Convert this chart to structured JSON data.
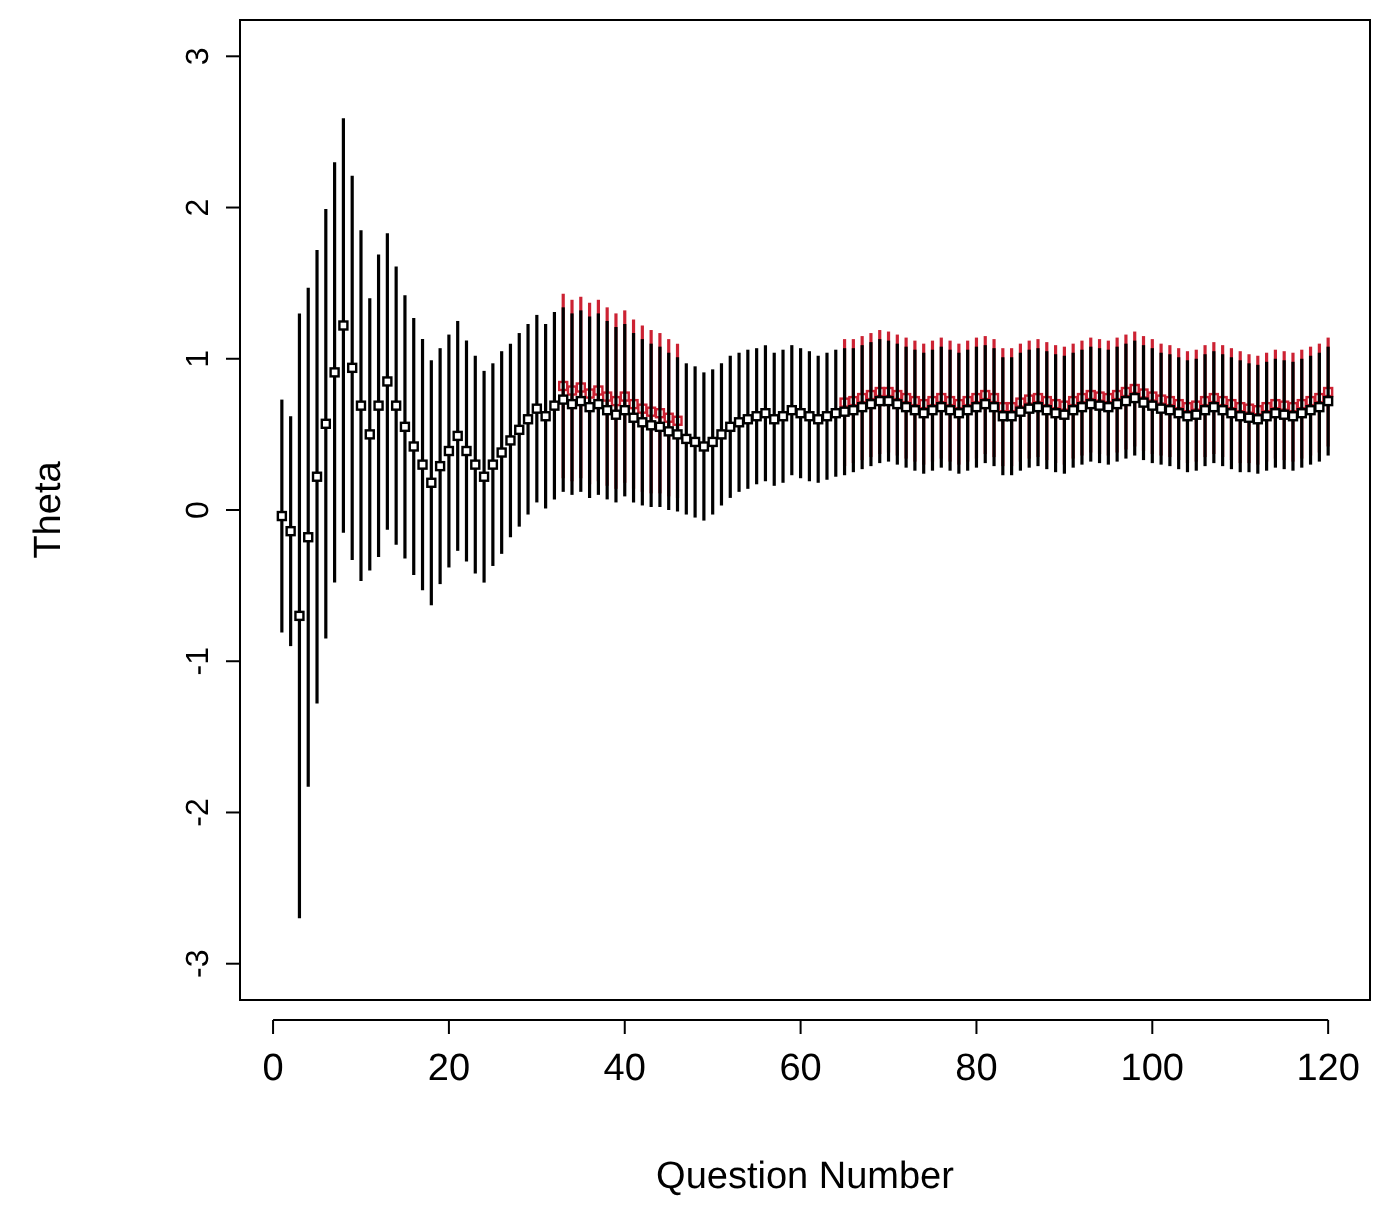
{
  "chart_data": {
    "type": "scatter",
    "xlabel": "Question Number",
    "ylabel": "Theta",
    "marker": "square",
    "grid": false,
    "xlim": [
      -3.76,
      124.76
    ],
    "xticks": [
      0,
      20,
      40,
      60,
      80,
      100,
      120
    ],
    "ylim": [
      -3.24,
      3.24
    ],
    "yticks": [
      -3,
      -2,
      -1,
      0,
      1,
      2,
      3
    ],
    "x": [
      1,
      2,
      3,
      4,
      5,
      6,
      7,
      8,
      9,
      10,
      11,
      12,
      13,
      14,
      15,
      16,
      17,
      18,
      19,
      20,
      21,
      22,
      23,
      24,
      25,
      26,
      27,
      28,
      29,
      30,
      31,
      32,
      33,
      34,
      35,
      36,
      37,
      38,
      39,
      40,
      41,
      42,
      43,
      44,
      45,
      46,
      47,
      48,
      49,
      50,
      51,
      52,
      53,
      54,
      55,
      56,
      57,
      58,
      59,
      60,
      61,
      62,
      63,
      64,
      65,
      66,
      67,
      68,
      69,
      70,
      71,
      72,
      73,
      74,
      75,
      76,
      77,
      78,
      79,
      80,
      81,
      82,
      83,
      84,
      85,
      86,
      87,
      88,
      89,
      90,
      91,
      92,
      93,
      94,
      95,
      96,
      97,
      98,
      99,
      100,
      101,
      102,
      103,
      104,
      105,
      106,
      107,
      108,
      109,
      110,
      111,
      112,
      113,
      114,
      115,
      116,
      117,
      118,
      119,
      120
    ],
    "series": [
      {
        "color": "#cc2233",
        "values": [
          null,
          null,
          null,
          null,
          null,
          null,
          null,
          null,
          null,
          null,
          null,
          null,
          null,
          null,
          null,
          null,
          null,
          null,
          null,
          null,
          null,
          null,
          null,
          null,
          null,
          null,
          null,
          null,
          null,
          null,
          null,
          null,
          0.82,
          0.79,
          0.81,
          0.77,
          0.79,
          0.75,
          0.72,
          0.75,
          0.7,
          0.67,
          0.65,
          0.64,
          0.61,
          0.59,
          null,
          null,
          null,
          null,
          null,
          null,
          null,
          null,
          null,
          null,
          null,
          null,
          null,
          null,
          null,
          null,
          null,
          null,
          0.71,
          0.72,
          0.74,
          0.76,
          0.78,
          0.78,
          0.76,
          0.74,
          0.72,
          0.7,
          0.72,
          0.74,
          0.72,
          0.7,
          0.72,
          0.74,
          0.76,
          0.74,
          0.68,
          0.68,
          0.71,
          0.73,
          0.74,
          0.72,
          0.7,
          0.69,
          0.72,
          0.74,
          0.76,
          0.75,
          0.74,
          0.76,
          0.78,
          0.8,
          0.77,
          0.75,
          0.73,
          0.72,
          0.7,
          0.68,
          0.69,
          0.72,
          0.74,
          0.72,
          0.7,
          0.68,
          0.67,
          0.66,
          0.68,
          0.7,
          0.69,
          0.68,
          0.7,
          0.72,
          0.74,
          0.78
        ],
        "errors": [
          null,
          null,
          null,
          null,
          null,
          null,
          null,
          null,
          null,
          null,
          null,
          null,
          null,
          null,
          null,
          null,
          null,
          null,
          null,
          null,
          null,
          null,
          null,
          null,
          null,
          null,
          null,
          null,
          null,
          null,
          null,
          null,
          0.61,
          0.6,
          0.6,
          0.6,
          0.6,
          0.59,
          0.58,
          0.57,
          0.56,
          0.55,
          0.54,
          0.53,
          0.52,
          0.51,
          null,
          null,
          null,
          null,
          null,
          null,
          null,
          null,
          null,
          null,
          null,
          null,
          null,
          null,
          null,
          null,
          null,
          null,
          0.42,
          0.41,
          0.41,
          0.41,
          0.41,
          0.4,
          0.4,
          0.4,
          0.4,
          0.4,
          0.4,
          0.4,
          0.4,
          0.4,
          0.4,
          0.4,
          0.39,
          0.39,
          0.39,
          0.39,
          0.39,
          0.39,
          0.39,
          0.39,
          0.39,
          0.39,
          0.38,
          0.38,
          0.38,
          0.38,
          0.38,
          0.38,
          0.38,
          0.38,
          0.38,
          0.38,
          0.37,
          0.37,
          0.37,
          0.37,
          0.37,
          0.37,
          0.37,
          0.37,
          0.37,
          0.37,
          0.36,
          0.36,
          0.36,
          0.36,
          0.36,
          0.36,
          0.36,
          0.36,
          0.36,
          0.36
        ]
      },
      {
        "color": "#000000",
        "values": [
          -0.04,
          -0.14,
          -0.7,
          -0.18,
          0.22,
          0.57,
          0.91,
          1.22,
          0.94,
          0.69,
          0.5,
          0.69,
          0.85,
          0.69,
          0.55,
          0.42,
          0.3,
          0.18,
          0.29,
          0.39,
          0.49,
          0.39,
          0.3,
          0.22,
          0.3,
          0.38,
          0.46,
          0.53,
          0.6,
          0.67,
          0.62,
          0.69,
          0.73,
          0.7,
          0.72,
          0.68,
          0.7,
          0.66,
          0.63,
          0.66,
          0.61,
          0.58,
          0.56,
          0.55,
          0.52,
          0.5,
          0.47,
          0.45,
          0.42,
          0.45,
          0.5,
          0.55,
          0.58,
          0.6,
          0.62,
          0.64,
          0.6,
          0.62,
          0.66,
          0.64,
          0.62,
          0.6,
          0.62,
          0.64,
          0.65,
          0.66,
          0.68,
          0.7,
          0.72,
          0.72,
          0.7,
          0.68,
          0.66,
          0.64,
          0.66,
          0.68,
          0.66,
          0.64,
          0.66,
          0.68,
          0.7,
          0.68,
          0.62,
          0.62,
          0.65,
          0.67,
          0.68,
          0.66,
          0.64,
          0.63,
          0.66,
          0.68,
          0.7,
          0.69,
          0.68,
          0.7,
          0.72,
          0.74,
          0.71,
          0.69,
          0.67,
          0.66,
          0.64,
          0.62,
          0.63,
          0.66,
          0.68,
          0.66,
          0.64,
          0.62,
          0.61,
          0.6,
          0.62,
          0.64,
          0.63,
          0.62,
          0.64,
          0.66,
          0.68,
          0.72
        ],
        "errors": [
          0.77,
          0.76,
          2.0,
          1.65,
          1.5,
          1.42,
          1.39,
          1.37,
          1.27,
          1.16,
          0.9,
          1.0,
          0.98,
          0.92,
          0.87,
          0.85,
          0.83,
          0.81,
          0.78,
          0.77,
          0.76,
          0.73,
          0.72,
          0.7,
          0.67,
          0.67,
          0.64,
          0.64,
          0.63,
          0.62,
          0.61,
          0.62,
          0.61,
          0.6,
          0.6,
          0.6,
          0.6,
          0.59,
          0.58,
          0.57,
          0.56,
          0.55,
          0.54,
          0.53,
          0.52,
          0.51,
          0.5,
          0.5,
          0.49,
          0.48,
          0.47,
          0.47,
          0.46,
          0.46,
          0.45,
          0.45,
          0.44,
          0.44,
          0.43,
          0.43,
          0.43,
          0.42,
          0.42,
          0.42,
          0.42,
          0.41,
          0.41,
          0.41,
          0.41,
          0.4,
          0.4,
          0.4,
          0.4,
          0.4,
          0.4,
          0.4,
          0.4,
          0.4,
          0.4,
          0.4,
          0.39,
          0.39,
          0.39,
          0.39,
          0.39,
          0.39,
          0.39,
          0.39,
          0.39,
          0.39,
          0.38,
          0.38,
          0.38,
          0.38,
          0.38,
          0.38,
          0.38,
          0.38,
          0.38,
          0.38,
          0.37,
          0.37,
          0.37,
          0.37,
          0.37,
          0.37,
          0.37,
          0.37,
          0.37,
          0.37,
          0.36,
          0.36,
          0.36,
          0.36,
          0.36,
          0.36,
          0.36,
          0.36,
          0.36,
          0.36
        ]
      }
    ]
  }
}
